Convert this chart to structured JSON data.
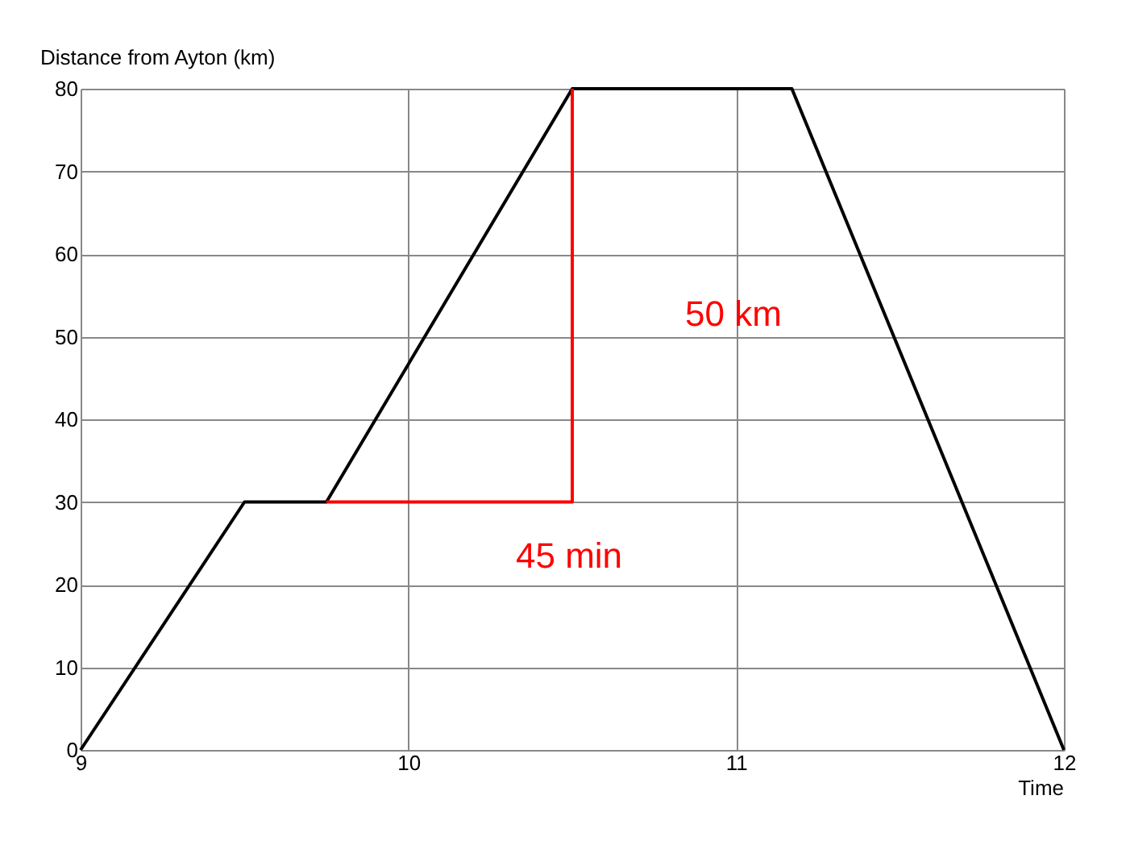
{
  "chart_data": {
    "type": "line",
    "xlabel": "Time",
    "ylabel": "Distance from Ayton (km)",
    "xlim": [
      9,
      12
    ],
    "xticks": [
      9,
      10,
      11,
      12
    ],
    "ylim": [
      0,
      80
    ],
    "yticks": [
      0,
      10,
      20,
      30,
      40,
      50,
      60,
      70,
      80
    ],
    "grid": true,
    "marker": "none",
    "line_style": "solid",
    "series": [
      {
        "color": "#000000",
        "x": [
          9,
          9.5,
          9.75,
          10.5,
          11.17,
          12
        ],
        "values": [
          0,
          30,
          30,
          80,
          80,
          0
        ]
      },
      {
        "color": "#ff0000",
        "x": [
          9.75,
          10.5,
          10.5
        ],
        "values": [
          30,
          30,
          80
        ]
      }
    ],
    "annotations": [
      "50 km",
      "45 min"
    ]
  }
}
